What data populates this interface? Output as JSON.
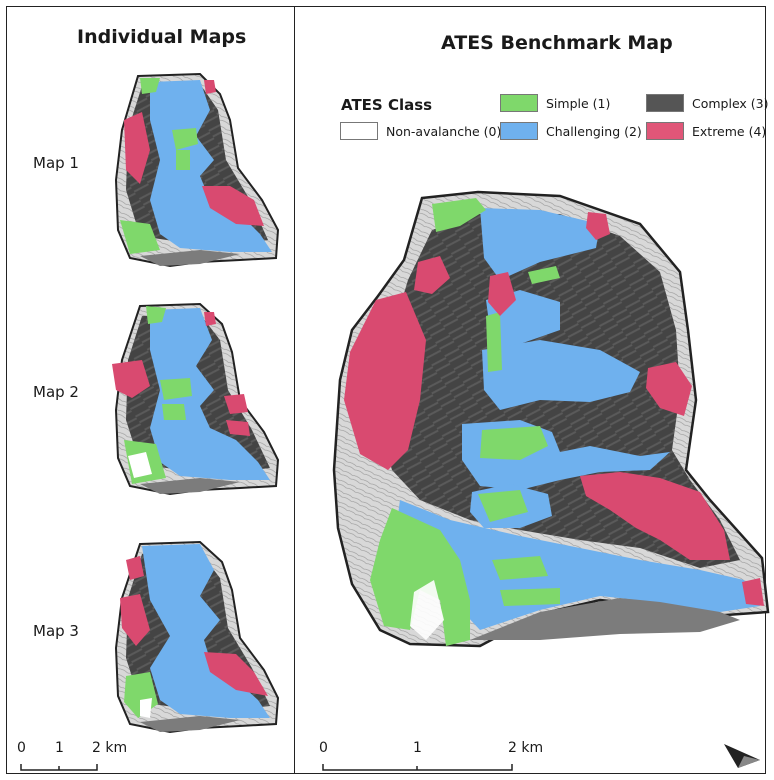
{
  "left_panel": {
    "title": "Individual Maps",
    "maps": [
      "Map 1",
      "Map 2",
      "Map 3"
    ],
    "scalebar": {
      "labels": [
        "0",
        "1",
        "2 km"
      ]
    }
  },
  "right_panel": {
    "title": "ATES Benchmark Map",
    "scalebar": {
      "labels": [
        "0",
        "1",
        "2 km"
      ]
    }
  },
  "legend": {
    "title": "ATES Class",
    "items": [
      {
        "label": "Non-avalanche (0)",
        "color": "#ffffff"
      },
      {
        "label": "Simple (1)",
        "color": "#7fd86b"
      },
      {
        "label": "Challenging (2)",
        "color": "#6fb1ee"
      },
      {
        "label": "Complex (3)",
        "color": "#555555"
      },
      {
        "label": "Extreme (4)",
        "color": "#e05678"
      }
    ]
  },
  "colors": {
    "simple": "#7fd86b",
    "challenging": "#6fb1ee",
    "complex": "#4d4d4d",
    "extreme": "#d94a70",
    "hillshade": "#9a9a9a"
  },
  "north_arrow": "north-arrow-icon"
}
